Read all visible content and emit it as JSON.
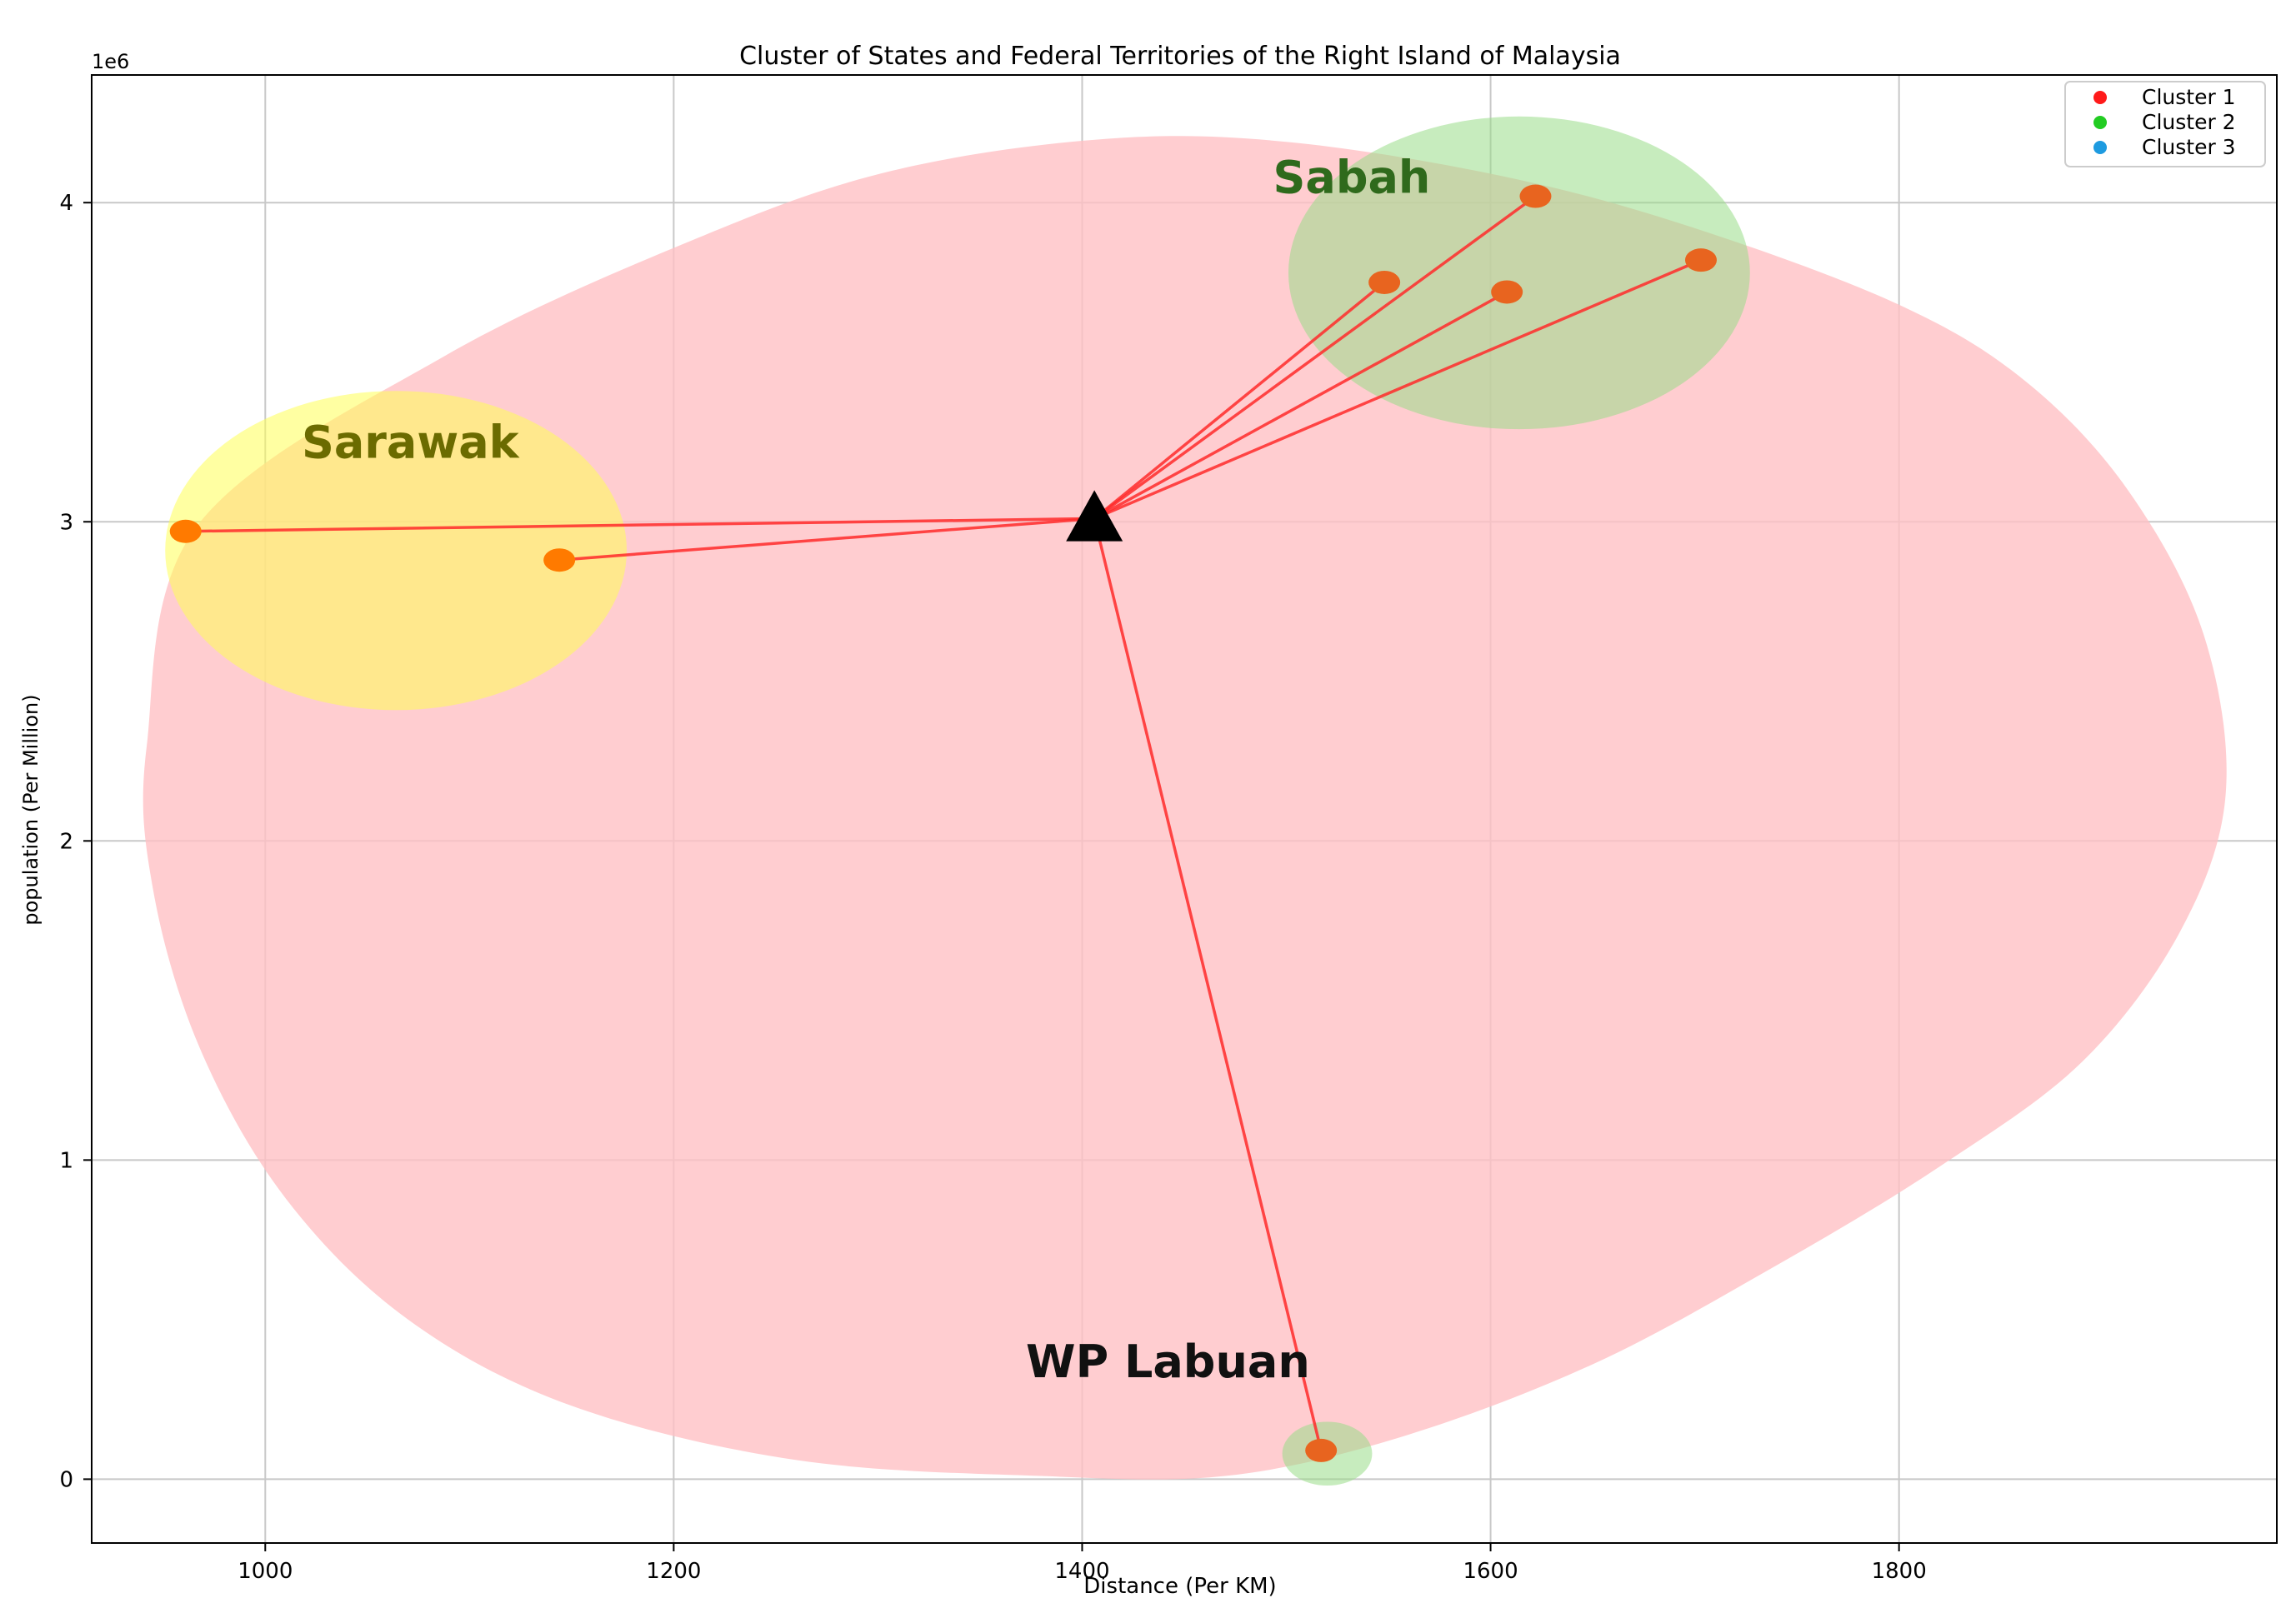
{
  "chart_data": {
    "type": "scatter",
    "title": "Cluster of States and Federal Territories of the Right Island of Malaysia",
    "xlabel": "Distance (Per KM)",
    "ylabel": "population (Per Million)",
    "y_offset_label": "1e6",
    "xlim": [
      915,
      1985
    ],
    "ylim": [
      -200000,
      4400000
    ],
    "x_ticks": [
      1000,
      1200,
      1400,
      1600,
      1800
    ],
    "y_ticks": [
      0,
      1000000,
      2000000,
      3000000,
      4000000
    ],
    "y_tick_labels": [
      "0",
      "1",
      "2",
      "3",
      "4"
    ],
    "grid": true,
    "legend_position": "top-right",
    "legend": [
      {
        "label": "Cluster 1",
        "color": "#ff1a1a"
      },
      {
        "label": "Cluster 2",
        "color": "#22cc22"
      },
      {
        "label": "Cluster 3",
        "color": "#1e9be0"
      }
    ],
    "centroid": {
      "x": 1406,
      "y": 3010000
    },
    "points": [
      {
        "group": "Sarawak",
        "x": 961,
        "y": 2970000
      },
      {
        "group": "Sarawak",
        "x": 1144,
        "y": 2880000
      },
      {
        "group": "Sabah",
        "x": 1548,
        "y": 3750000
      },
      {
        "group": "Sabah",
        "x": 1622,
        "y": 4020000
      },
      {
        "group": "Sabah",
        "x": 1608,
        "y": 3720000
      },
      {
        "group": "Sabah",
        "x": 1703,
        "y": 3820000
      },
      {
        "group": "WP Labuan",
        "x": 1517,
        "y": 90000
      }
    ],
    "regions": [
      {
        "label": "Sarawak",
        "cx": 1064,
        "cy": 2910000,
        "rx": 113,
        "ry": 500000,
        "fill": "#ffff55",
        "label_color": "#6b6b00",
        "label_x": 1071,
        "label_y": 3200000
      },
      {
        "label": "Sabah",
        "cx": 1614,
        "cy": 3780000,
        "rx": 113,
        "ry": 490000,
        "fill": "#99dd88",
        "label_color": "#2f6a1c",
        "label_x": 1532,
        "label_y": 4030000
      },
      {
        "label": "WP Labuan",
        "cx": 1520,
        "cy": 80000,
        "rx": 22,
        "ry": 100000,
        "fill": "#99dd88",
        "label_color": "#111111",
        "label_x": 1442,
        "label_y": 320000
      }
    ],
    "hull": [
      [
        967,
        2990000
      ],
      [
        1088,
        3520000
      ],
      [
        1212,
        3890000
      ],
      [
        1307,
        4100000
      ],
      [
        1412,
        4200000
      ],
      [
        1501,
        4190000
      ],
      [
        1608,
        4080000
      ],
      [
        1700,
        3920000
      ],
      [
        1800,
        3680000
      ],
      [
        1862,
        3440000
      ],
      [
        1912,
        3100000
      ],
      [
        1949,
        2650000
      ],
      [
        1960,
        2150000
      ],
      [
        1938,
        1720000
      ],
      [
        1890,
        1310000
      ],
      [
        1820,
        980000
      ],
      [
        1740,
        670000
      ],
      [
        1650,
        360000
      ],
      [
        1555,
        130000
      ],
      [
        1470,
        10000
      ],
      [
        1380,
        10000
      ],
      [
        1260,
        60000
      ],
      [
        1150,
        230000
      ],
      [
        1070,
        500000
      ],
      [
        1010,
        880000
      ],
      [
        968,
        1350000
      ],
      [
        945,
        1850000
      ],
      [
        942,
        2300000
      ]
    ],
    "colors": {
      "hull_fill": "#ffc0c4",
      "point_fill": "#e8641f",
      "sarawak_point_fill": "#ff7a00",
      "line": "#ff2a2a",
      "centroid": "#000000"
    }
  }
}
